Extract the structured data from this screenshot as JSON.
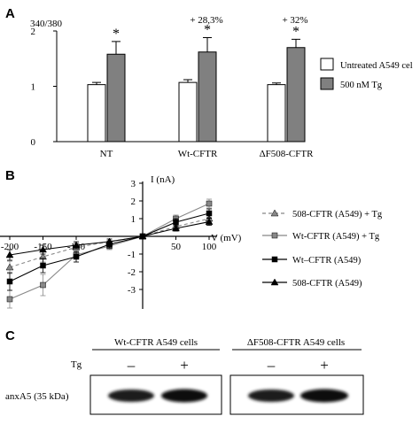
{
  "panels": {
    "a": {
      "letter": "A"
    },
    "b": {
      "letter": "B"
    },
    "c": {
      "letter": "C"
    }
  },
  "chart_data": [
    {
      "type": "bar",
      "panel": "A",
      "ratio_label": "340/380",
      "categories": [
        "NT",
        "Wt-CFTR",
        "ΔF508-CFTR"
      ],
      "series": [
        {
          "name": "Untreated A549 cel",
          "values": [
            1.03,
            1.07,
            1.03
          ],
          "errors": [
            0.04,
            0.05,
            0.03
          ],
          "color": "#ffffff"
        },
        {
          "name": "500 nM Tg",
          "values": [
            1.58,
            1.62,
            1.7
          ],
          "errors": [
            0.23,
            0.26,
            0.15
          ],
          "color": "#808080"
        }
      ],
      "significance": [
        "*",
        "*",
        "*"
      ],
      "percent_changes": [
        "",
        "+ 28,3%",
        "+ 32%"
      ],
      "ylim": [
        0,
        2
      ],
      "yticks": [
        "0",
        "1",
        "2"
      ],
      "legend_position": "right"
    },
    {
      "type": "line",
      "panel": "B",
      "ylabel": "I (nA)",
      "xlabel": "V (mV)",
      "xlim": [
        -200,
        100
      ],
      "ylim": [
        -4,
        3
      ],
      "xticks": [
        "-200",
        "-150",
        "-100",
        "50",
        "100"
      ],
      "yticks": [
        "3",
        "2",
        "1",
        "-1",
        "-2",
        "-3"
      ],
      "legend_position": "right",
      "series": [
        {
          "name": "508-CFTR (A549) + Tg",
          "marker": "triangle",
          "color": "#888888",
          "dash": "4 3",
          "x": [
            -200,
            -150,
            -100,
            -50,
            0,
            50,
            100
          ],
          "y": [
            -1.75,
            -1.15,
            -0.62,
            -0.3,
            0,
            0.55,
            1.0
          ],
          "err": [
            0.35,
            0.3,
            0.25,
            0.15,
            0,
            0.15,
            0.2
          ]
        },
        {
          "name": "Wt-CFTR (A549) + Tg",
          "marker": "square",
          "color": "#888888",
          "dash": "",
          "x": [
            -200,
            -150,
            -100,
            -50,
            0,
            50,
            100
          ],
          "y": [
            -3.55,
            -2.75,
            -1.05,
            -0.55,
            0,
            1.0,
            1.85
          ],
          "err": [
            0.5,
            0.6,
            0.4,
            0.2,
            0,
            0.2,
            0.25
          ]
        },
        {
          "name": "Wt–CFTR (A549)",
          "marker": "square",
          "color": "#000000",
          "dash": "",
          "x": [
            -200,
            -150,
            -100,
            -50,
            0,
            50,
            100
          ],
          "y": [
            -2.55,
            -1.65,
            -1.15,
            -0.45,
            0,
            0.8,
            1.3
          ],
          "err": [
            0.5,
            0.4,
            0.3,
            0.2,
            0,
            0.2,
            0.25
          ]
        },
        {
          "name": "508-CFTR (A549)",
          "marker": "triangle",
          "color": "#000000",
          "dash": "",
          "x": [
            -200,
            -150,
            -100,
            -50,
            0,
            50,
            100
          ],
          "y": [
            -1.05,
            -0.75,
            -0.5,
            -0.3,
            0,
            0.45,
            0.82
          ],
          "err": [
            0.3,
            0.25,
            0.2,
            0.15,
            0,
            0.15,
            0.2
          ]
        }
      ]
    }
  ],
  "blot": {
    "group1_title": "Wt-CFTR A549 cells",
    "group2_title": "ΔF508-CFTR A549 cells",
    "treatment_label": "Tg",
    "lanes": [
      "–",
      "+",
      "–",
      "+"
    ],
    "band_label": "anxA5 (35 kDa)"
  }
}
